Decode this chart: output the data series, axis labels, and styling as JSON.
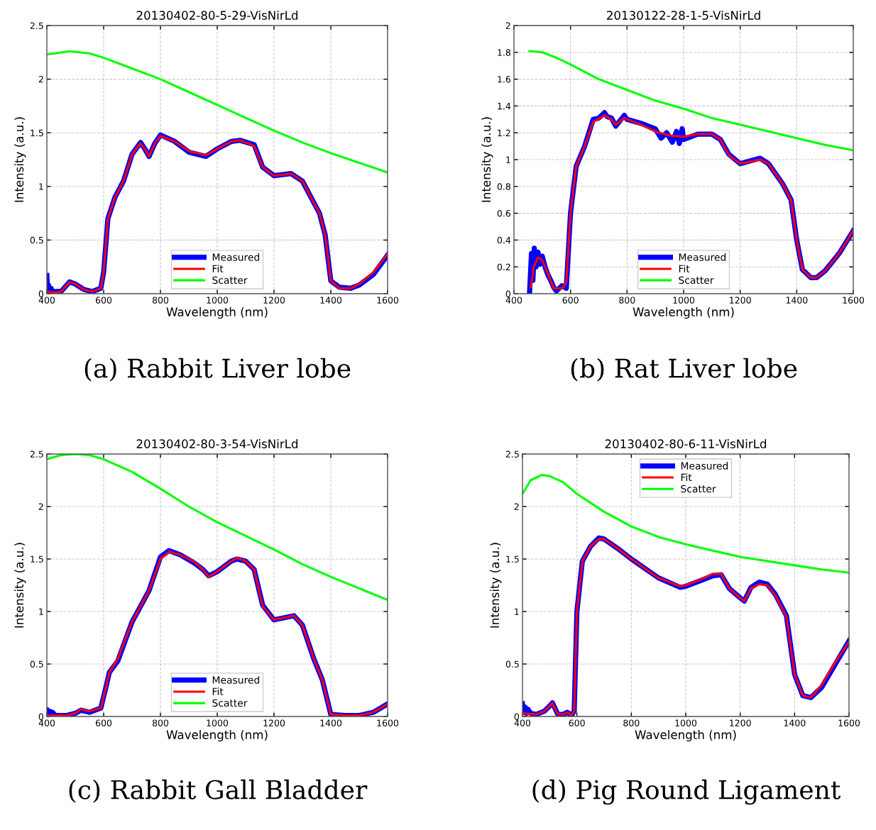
{
  "chart_data": [
    {
      "type": "line",
      "title": "20130402-80-5-29-VisNirLd",
      "xlabel": "Wavelength (nm)",
      "ylabel": "Intensity (a.u.)",
      "xlim": [
        400,
        1600
      ],
      "ylim": [
        0,
        2.5
      ],
      "xticks": [
        400,
        600,
        800,
        1000,
        1200,
        1400,
        1600
      ],
      "yticks": [
        0,
        0.5,
        1,
        1.5,
        2,
        2.5
      ],
      "grid": true,
      "legend": "bottom",
      "line_style": "solid",
      "annotations": [
        "(a) Rabbit Liver lobe"
      ],
      "series": [
        {
          "name": "Measured",
          "color": "#0000ff",
          "x": [
            400,
            403,
            406,
            410,
            415,
            420,
            430,
            450,
            480,
            500,
            530,
            560,
            590,
            600,
            615,
            640,
            670,
            700,
            730,
            745,
            760,
            780,
            800,
            850,
            900,
            960,
            1000,
            1050,
            1080,
            1130,
            1160,
            1200,
            1260,
            1300,
            1360,
            1380,
            1400,
            1430,
            1470,
            1500,
            1550,
            1600
          ],
          "values": [
            0.17,
            0.02,
            0.08,
            0.01,
            0.05,
            0.01,
            0.02,
            0.02,
            0.11,
            0.09,
            0.04,
            0.02,
            0.05,
            0.2,
            0.7,
            0.9,
            1.05,
            1.3,
            1.41,
            1.35,
            1.28,
            1.4,
            1.48,
            1.42,
            1.32,
            1.28,
            1.35,
            1.42,
            1.43,
            1.39,
            1.18,
            1.1,
            1.12,
            1.05,
            0.75,
            0.55,
            0.12,
            0.06,
            0.05,
            0.08,
            0.18,
            0.36
          ]
        },
        {
          "name": "Fit",
          "color": "#ff0000",
          "x": [
            400,
            430,
            450,
            480,
            500,
            530,
            560,
            590,
            600,
            615,
            640,
            670,
            700,
            730,
            745,
            760,
            780,
            800,
            850,
            900,
            960,
            1000,
            1050,
            1080,
            1130,
            1160,
            1200,
            1260,
            1300,
            1360,
            1380,
            1400,
            1430,
            1470,
            1500,
            1550,
            1600
          ],
          "values": [
            0.02,
            0.01,
            0.02,
            0.11,
            0.09,
            0.04,
            0.02,
            0.05,
            0.2,
            0.7,
            0.9,
            1.05,
            1.3,
            1.4,
            1.35,
            1.28,
            1.4,
            1.47,
            1.42,
            1.33,
            1.29,
            1.35,
            1.42,
            1.43,
            1.38,
            1.18,
            1.1,
            1.12,
            1.05,
            0.75,
            0.55,
            0.12,
            0.05,
            0.05,
            0.09,
            0.2,
            0.37
          ]
        },
        {
          "name": "Scatter",
          "color": "#00ff00",
          "x": [
            400,
            480,
            550,
            600,
            700,
            800,
            900,
            1000,
            1100,
            1200,
            1300,
            1400,
            1500,
            1600
          ],
          "values": [
            2.23,
            2.26,
            2.24,
            2.2,
            2.1,
            2.0,
            1.88,
            1.76,
            1.64,
            1.52,
            1.41,
            1.31,
            1.22,
            1.13
          ]
        }
      ]
    },
    {
      "type": "line",
      "title": "20130122-28-1-5-VisNirLd",
      "xlabel": "Wavelength (nm)",
      "ylabel": "Intensity (a.u.)",
      "xlim": [
        400,
        1600
      ],
      "ylim": [
        0,
        2
      ],
      "xticks": [
        400,
        600,
        800,
        1000,
        1200,
        1400,
        1600
      ],
      "yticks": [
        0,
        0.2,
        0.4,
        0.6,
        0.8,
        1,
        1.2,
        1.4,
        1.6,
        1.8,
        2
      ],
      "grid": true,
      "legend": "bottom",
      "line_style": "solid",
      "annotations": [
        "(b) Rat Liver lobe"
      ],
      "series": [
        {
          "name": "Measured",
          "color": "#0000ff",
          "x": [
            455,
            462,
            467,
            472,
            478,
            485,
            492,
            500,
            510,
            520,
            530,
            540,
            550,
            570,
            585,
            600,
            620,
            650,
            680,
            700,
            720,
            730,
            745,
            760,
            790,
            800,
            850,
            900,
            920,
            940,
            960,
            975,
            985,
            995,
            1000,
            1050,
            1100,
            1130,
            1160,
            1200,
            1270,
            1300,
            1350,
            1380,
            1400,
            1420,
            1450,
            1470,
            1500,
            1550,
            1600
          ],
          "values": [
            0.0,
            0.3,
            0.1,
            0.34,
            0.2,
            0.31,
            0.22,
            0.28,
            0.2,
            0.14,
            0.1,
            0.05,
            0.02,
            0.06,
            0.04,
            0.6,
            0.95,
            1.1,
            1.3,
            1.31,
            1.35,
            1.32,
            1.31,
            1.25,
            1.33,
            1.3,
            1.27,
            1.23,
            1.16,
            1.2,
            1.13,
            1.21,
            1.12,
            1.23,
            1.15,
            1.19,
            1.19,
            1.15,
            1.04,
            0.97,
            1.01,
            0.97,
            0.82,
            0.7,
            0.4,
            0.18,
            0.12,
            0.12,
            0.17,
            0.3,
            0.47
          ]
        },
        {
          "name": "Fit",
          "color": "#ff0000",
          "x": [
            460,
            470,
            485,
            500,
            520,
            540,
            570,
            585,
            600,
            620,
            650,
            680,
            720,
            745,
            760,
            790,
            850,
            900,
            950,
            1000,
            1050,
            1100,
            1130,
            1160,
            1200,
            1270,
            1300,
            1350,
            1380,
            1400,
            1420,
            1450,
            1470,
            1500,
            1550,
            1600
          ],
          "values": [
            0.05,
            0.2,
            0.27,
            0.25,
            0.15,
            0.04,
            0.04,
            0.08,
            0.6,
            0.95,
            1.1,
            1.28,
            1.33,
            1.3,
            1.26,
            1.31,
            1.26,
            1.21,
            1.18,
            1.17,
            1.19,
            1.19,
            1.15,
            1.03,
            0.97,
            1.0,
            0.97,
            0.82,
            0.7,
            0.4,
            0.18,
            0.12,
            0.12,
            0.17,
            0.3,
            0.47
          ]
        },
        {
          "name": "Scatter",
          "color": "#00ff00",
          "x": [
            455,
            500,
            550,
            600,
            700,
            800,
            900,
            1000,
            1100,
            1200,
            1300,
            1400,
            1500,
            1600
          ],
          "values": [
            1.81,
            1.8,
            1.76,
            1.71,
            1.6,
            1.52,
            1.44,
            1.38,
            1.31,
            1.26,
            1.21,
            1.16,
            1.11,
            1.07
          ]
        }
      ]
    },
    {
      "type": "line",
      "title": "20130402-80-3-54-VisNirLd",
      "xlabel": "Wavelength (nm)",
      "ylabel": "Intensity (a.u.)",
      "xlim": [
        400,
        1600
      ],
      "ylim": [
        0,
        2.5
      ],
      "xticks": [
        400,
        600,
        800,
        1000,
        1200,
        1400,
        1600
      ],
      "yticks": [
        0,
        0.5,
        1,
        1.5,
        2,
        2.5
      ],
      "grid": true,
      "legend": "bottom",
      "line_style": "solid",
      "annotations": [
        "(c) Rabbit Gall Bladder"
      ],
      "series": [
        {
          "name": "Measured",
          "color": "#0000ff",
          "x": [
            400,
            405,
            410,
            415,
            420,
            430,
            470,
            500,
            520,
            550,
            590,
            610,
            620,
            650,
            700,
            740,
            760,
            800,
            830,
            870,
            920,
            950,
            970,
            1000,
            1050,
            1070,
            1100,
            1130,
            1160,
            1200,
            1270,
            1300,
            1340,
            1370,
            1400,
            1450,
            1500,
            1550,
            1600
          ],
          "values": [
            0.06,
            0.02,
            0.05,
            0.01,
            0.04,
            0.01,
            0.01,
            0.03,
            0.06,
            0.04,
            0.08,
            0.3,
            0.42,
            0.53,
            0.9,
            1.1,
            1.2,
            1.52,
            1.58,
            1.54,
            1.46,
            1.4,
            1.34,
            1.38,
            1.48,
            1.5,
            1.48,
            1.4,
            1.06,
            0.92,
            0.96,
            0.87,
            0.55,
            0.35,
            0.02,
            0.01,
            0.01,
            0.04,
            0.12
          ]
        },
        {
          "name": "Fit",
          "color": "#ff0000",
          "x": [
            400,
            470,
            500,
            520,
            550,
            590,
            610,
            620,
            650,
            700,
            740,
            760,
            800,
            830,
            870,
            920,
            950,
            970,
            1000,
            1050,
            1070,
            1100,
            1130,
            1160,
            1200,
            1270,
            1300,
            1340,
            1370,
            1400,
            1450,
            1500,
            1550,
            1600
          ],
          "values": [
            0.01,
            0.01,
            0.03,
            0.07,
            0.05,
            0.08,
            0.3,
            0.42,
            0.55,
            0.9,
            1.1,
            1.2,
            1.5,
            1.57,
            1.54,
            1.47,
            1.4,
            1.33,
            1.38,
            1.48,
            1.51,
            1.48,
            1.4,
            1.05,
            0.92,
            0.96,
            0.87,
            0.55,
            0.35,
            0.02,
            0.01,
            0.01,
            0.04,
            0.12
          ]
        },
        {
          "name": "Scatter",
          "color": "#00ff00",
          "x": [
            400,
            450,
            500,
            550,
            600,
            700,
            800,
            900,
            1000,
            1100,
            1200,
            1300,
            1400,
            1500,
            1600
          ],
          "values": [
            2.45,
            2.49,
            2.5,
            2.49,
            2.45,
            2.33,
            2.17,
            2.0,
            1.85,
            1.72,
            1.59,
            1.45,
            1.33,
            1.22,
            1.11
          ]
        }
      ]
    },
    {
      "type": "line",
      "title": "20130402-80-6-11-VisNirLd",
      "xlabel": "Wavelength (nm)",
      "ylabel": "Intensity (a.u.)",
      "xlim": [
        400,
        1600
      ],
      "ylim": [
        0,
        2.5
      ],
      "xticks": [
        400,
        600,
        800,
        1000,
        1200,
        1400,
        1600
      ],
      "yticks": [
        0,
        0.5,
        1,
        1.5,
        2,
        2.5
      ],
      "grid": true,
      "legend": "top",
      "line_style": "solid",
      "annotations": [
        "(d) Pig Round Ligament"
      ],
      "series": [
        {
          "name": "Measured",
          "color": "#0000ff",
          "x": [
            400,
            405,
            410,
            415,
            420,
            430,
            450,
            480,
            500,
            510,
            530,
            550,
            565,
            580,
            590,
            600,
            620,
            650,
            680,
            700,
            750,
            800,
            900,
            980,
            1000,
            1050,
            1100,
            1130,
            1160,
            1200,
            1215,
            1240,
            1270,
            1300,
            1330,
            1370,
            1400,
            1430,
            1460,
            1500,
            1550,
            1600
          ],
          "values": [
            0.12,
            0.04,
            0.09,
            0.03,
            0.07,
            0.03,
            0.02,
            0.05,
            0.1,
            0.13,
            0.02,
            0.02,
            0.04,
            0.01,
            0.05,
            1.0,
            1.48,
            1.62,
            1.7,
            1.69,
            1.6,
            1.5,
            1.32,
            1.23,
            1.24,
            1.29,
            1.34,
            1.35,
            1.22,
            1.13,
            1.1,
            1.23,
            1.28,
            1.26,
            1.16,
            0.96,
            0.4,
            0.2,
            0.18,
            0.28,
            0.5,
            0.72
          ]
        },
        {
          "name": "Fit",
          "color": "#ff0000",
          "x": [
            400,
            450,
            480,
            500,
            510,
            530,
            550,
            565,
            580,
            590,
            600,
            620,
            650,
            680,
            700,
            750,
            800,
            900,
            980,
            1000,
            1050,
            1100,
            1130,
            1160,
            1200,
            1215,
            1240,
            1270,
            1300,
            1330,
            1370,
            1400,
            1430,
            1460,
            1500,
            1550,
            1600
          ],
          "values": [
            0.03,
            0.02,
            0.05,
            0.1,
            0.13,
            0.02,
            0.02,
            0.04,
            0.01,
            0.05,
            1.0,
            1.48,
            1.62,
            1.69,
            1.69,
            1.6,
            1.5,
            1.32,
            1.24,
            1.25,
            1.3,
            1.36,
            1.36,
            1.22,
            1.13,
            1.1,
            1.22,
            1.26,
            1.25,
            1.15,
            0.95,
            0.4,
            0.2,
            0.18,
            0.3,
            0.52,
            0.71
          ]
        },
        {
          "name": "Scatter",
          "color": "#00ff00",
          "x": [
            400,
            430,
            470,
            500,
            550,
            600,
            700,
            800,
            900,
            1000,
            1100,
            1200,
            1300,
            1400,
            1500,
            1600
          ],
          "values": [
            2.12,
            2.25,
            2.3,
            2.29,
            2.23,
            2.12,
            1.95,
            1.81,
            1.71,
            1.64,
            1.58,
            1.52,
            1.48,
            1.44,
            1.4,
            1.37
          ]
        }
      ]
    }
  ]
}
